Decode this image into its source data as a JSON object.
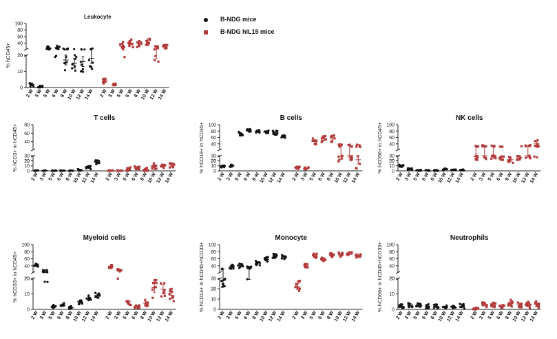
{
  "legend": {
    "items": [
      {
        "label": "B-NDG mice",
        "marker": "circle",
        "color": "#111111"
      },
      {
        "label": "B-NDG hIL15 mice",
        "marker": "square",
        "color": "#b23a3a"
      }
    ]
  },
  "colors": {
    "series1": "#111111",
    "series2": "#b23a3a",
    "axis": "#222222"
  },
  "chart_data": [
    {
      "type": "scatter",
      "panel": "leukocyte",
      "title": "Leukocyte",
      "ylabel": "% hCD45+",
      "axis_breaks": [
        {
          "lower": [
            0,
            20
          ],
          "upper": [
            20,
            100
          ]
        }
      ],
      "yticks_lower": [
        0,
        10,
        20
      ],
      "yticks_upper": [
        20,
        40,
        60,
        80,
        100
      ],
      "categories": [
        "2 W",
        "3 W",
        "5 W",
        "6 W",
        "8 W",
        "10 W",
        "12 W",
        "14 W"
      ],
      "series": [
        {
          "name": "B-NDG mice",
          "means": [
            2,
            0.5,
            24,
            26,
            17,
            15,
            16,
            18
          ],
          "sd": [
            0.8,
            0.3,
            3,
            4,
            3,
            3,
            3,
            3
          ]
        },
        {
          "name": "B-NDG hIL15 mice",
          "means": [
            4,
            1.5,
            30,
            40,
            40,
            47,
            22,
            28
          ],
          "sd": [
            0.8,
            0.4,
            6,
            6,
            6,
            6,
            4,
            6
          ]
        }
      ]
    },
    {
      "type": "scatter",
      "panel": "t-cells",
      "title": "T cells",
      "ylabel": "% hCD3+ in hCD45+",
      "axis_breaks": [
        {
          "lower": [
            0,
            30
          ],
          "upper": [
            20,
            80
          ]
        }
      ],
      "yticks_lower": [
        0,
        10,
        20,
        30
      ],
      "yticks_upper": [
        20,
        40,
        60,
        80
      ],
      "categories": [
        "2 W",
        "3 W",
        "5 W",
        "6 W",
        "8 W",
        "10 W",
        "12 W",
        "14 W"
      ],
      "series": [
        {
          "name": "B-NDG mice",
          "means": [
            0.5,
            0.8,
            0.5,
            0.5,
            0.5,
            2,
            7,
            17
          ],
          "sd": [
            0.3,
            0.3,
            0.3,
            0.3,
            0.3,
            1,
            2,
            3
          ]
        },
        {
          "name": "B-NDG hIL15 mice",
          "means": [
            0.5,
            0.5,
            3,
            5,
            3,
            9,
            9,
            11
          ],
          "sd": [
            0.3,
            0.3,
            2,
            2,
            2,
            3,
            2,
            2
          ]
        }
      ]
    },
    {
      "type": "scatter",
      "panel": "b-cells",
      "title": "B cells",
      "ylabel": "% hCD19+ in hCD45+",
      "axis_breaks": [
        {
          "lower": [
            0,
            30
          ],
          "upper": [
            20,
            100
          ]
        }
      ],
      "yticks_lower": [
        0,
        10,
        20,
        30
      ],
      "yticks_upper": [
        20,
        40,
        60,
        80,
        100
      ],
      "categories": [
        "2 W",
        "3 W",
        "5 W",
        "6 W",
        "8 W",
        "10 W",
        "12 W",
        "14 W"
      ],
      "series": [
        {
          "name": "B-NDG mice",
          "means": [
            9,
            10,
            72,
            80,
            80,
            78,
            75,
            65
          ],
          "sd": [
            1,
            1,
            3,
            3,
            3,
            3,
            3,
            3
          ]
        },
        {
          "name": "B-NDG hIL15 mice",
          "means": [
            6,
            5,
            47,
            55,
            57,
            28,
            30,
            22
          ],
          "sd": [
            1,
            1,
            5,
            5,
            5,
            5,
            4,
            8
          ]
        }
      ]
    },
    {
      "type": "scatter",
      "panel": "nk-cells",
      "title": "NK cells",
      "ylabel": "% hCD56+ in hCD45+",
      "axis_breaks": [
        {
          "lower": [
            0,
            30
          ],
          "upper": [
            20,
            100
          ]
        }
      ],
      "yticks_lower": [
        0,
        10,
        20,
        30
      ],
      "yticks_upper": [
        20,
        40,
        60,
        80,
        100
      ],
      "categories": [
        "2 W",
        "3 W",
        "5 W",
        "6 W",
        "8 W",
        "10 W",
        "12 W",
        "14 W"
      ],
      "series": [
        {
          "name": "B-NDG mice",
          "means": [
            10,
            4,
            1,
            1,
            1,
            3,
            2,
            2
          ],
          "sd": [
            1,
            1,
            0.5,
            0.5,
            0.5,
            1,
            0.5,
            0.5
          ]
        },
        {
          "name": "B-NDG hIL15 mice",
          "means": [
            28,
            30,
            28,
            27,
            22,
            27,
            30,
            40
          ],
          "sd": [
            3,
            3,
            3,
            3,
            3,
            3,
            3,
            6
          ]
        }
      ]
    },
    {
      "type": "scatter",
      "panel": "myeloid-cells",
      "title": "Myeloid cells",
      "ylabel": "% hCD33+ in hCD45+",
      "axis_breaks": [
        {
          "lower": [
            0,
            20
          ],
          "upper": [
            20,
            100
          ]
        }
      ],
      "yticks_lower": [
        0,
        10,
        20
      ],
      "yticks_upper": [
        20,
        40,
        60,
        80,
        100
      ],
      "categories": [
        "2 W",
        "3 W",
        "5 W",
        "6 W",
        "8 W",
        "10 W",
        "12 W",
        "14 W"
      ],
      "series": [
        {
          "name": "B-NDG mice",
          "means": [
            42,
            24,
            2,
            3,
            1,
            5,
            7,
            9
          ],
          "sd": [
            2,
            3,
            0.5,
            0.5,
            0.5,
            1,
            1,
            1
          ]
        },
        {
          "name": "B-NDG hIL15 mice",
          "means": [
            38,
            25,
            5,
            2,
            4,
            14,
            13,
            9
          ],
          "sd": [
            2,
            3,
            1,
            0.5,
            1,
            3,
            3,
            2
          ]
        }
      ]
    },
    {
      "type": "scatter",
      "panel": "monocyte",
      "title": "Monocyte",
      "ylabel": "% hCD14+ in hCD45+hCD33+",
      "axis_breaks": [
        {
          "lower": [
            0,
            30
          ],
          "upper": [
            20,
            100
          ]
        }
      ],
      "yticks_lower": [
        0,
        10,
        20,
        30
      ],
      "yticks_upper": [
        20,
        40,
        60,
        80,
        100
      ],
      "categories": [
        "2 W",
        "3 W",
        "5 W",
        "6 W",
        "8 W",
        "10 W",
        "12 W",
        "14 W"
      ],
      "series": [
        {
          "name": "B-NDG mice",
          "means": [
            28,
            38,
            40,
            32,
            48,
            58,
            68,
            65
          ],
          "sd": [
            3,
            3,
            3,
            3,
            3,
            3,
            3,
            3
          ]
        },
        {
          "name": "B-NDG hIL15 mice",
          "means": [
            22,
            42,
            68,
            60,
            70,
            72,
            75,
            70
          ],
          "sd": [
            3,
            3,
            3,
            3,
            3,
            3,
            3,
            3
          ]
        }
      ]
    },
    {
      "type": "scatter",
      "panel": "neutrophils",
      "title": "Neutrophils",
      "ylabel": "% hCD66+ in hCD45+hCD33+",
      "axis_breaks": [
        {
          "lower": [
            0,
            20
          ],
          "upper": [
            20,
            100
          ]
        }
      ],
      "yticks_lower": [
        0,
        10,
        20
      ],
      "yticks_upper": [
        20,
        40,
        60,
        80,
        100
      ],
      "categories": [
        "2 W",
        "3 W",
        "5 W",
        "6 W",
        "8 W",
        "10 W",
        "12 W",
        "14 W"
      ],
      "series": [
        {
          "name": "B-NDG mice",
          "means": [
            2,
            3,
            3,
            2,
            2,
            1.5,
            1.5,
            2
          ],
          "sd": [
            0.7,
            0.7,
            0.7,
            0.7,
            0.7,
            0.5,
            0.5,
            0.7
          ]
        },
        {
          "name": "B-NDG hIL15 mice",
          "means": [
            0.5,
            3,
            3,
            2,
            4,
            3,
            3,
            3
          ],
          "sd": [
            0.3,
            0.7,
            0.7,
            0.7,
            1,
            1,
            1,
            1
          ]
        }
      ]
    }
  ]
}
